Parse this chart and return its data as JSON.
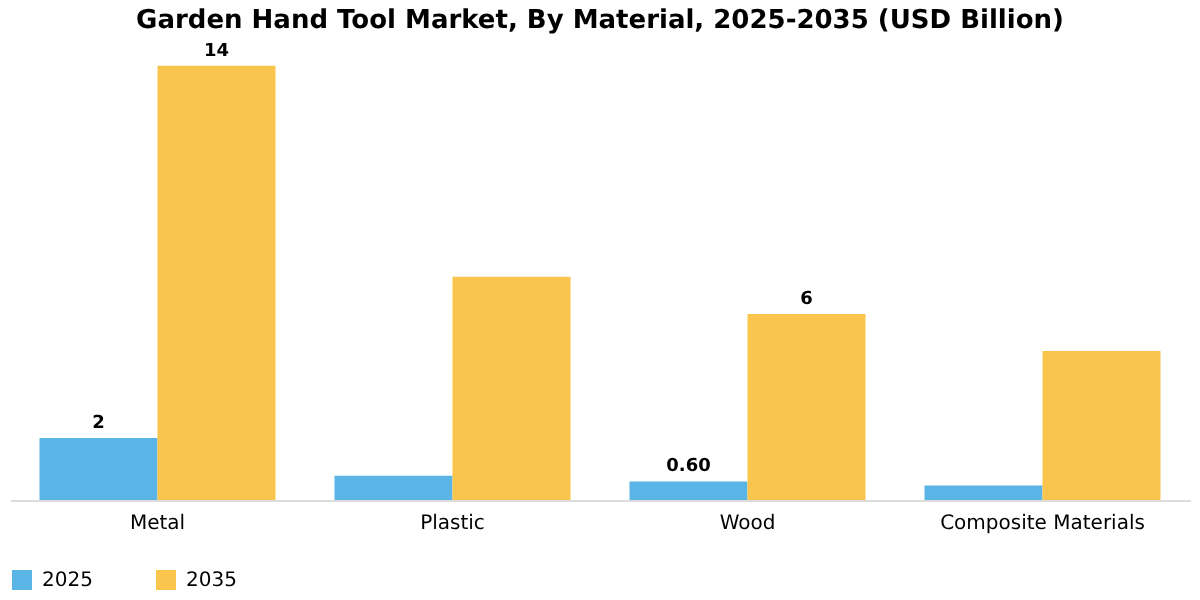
{
  "chart_data": {
    "type": "bar",
    "title": "Garden Hand Tool Market, By Material, 2025-2035 (USD Billion)",
    "categories": [
      "Metal",
      "Plastic",
      "Wood",
      "Composite Materials"
    ],
    "series": [
      {
        "name": "2025",
        "color": "#5ab4e5",
        "values": [
          2,
          0.78,
          0.6,
          0.47
        ],
        "value_labels": [
          "2",
          null,
          "0.60",
          null
        ]
      },
      {
        "name": "2035",
        "color": "#f9c54c",
        "values": [
          14,
          7.2,
          6,
          4.8
        ],
        "value_labels": [
          "14",
          null,
          "6",
          null
        ]
      }
    ],
    "legend": "bottom",
    "grid": false
  }
}
